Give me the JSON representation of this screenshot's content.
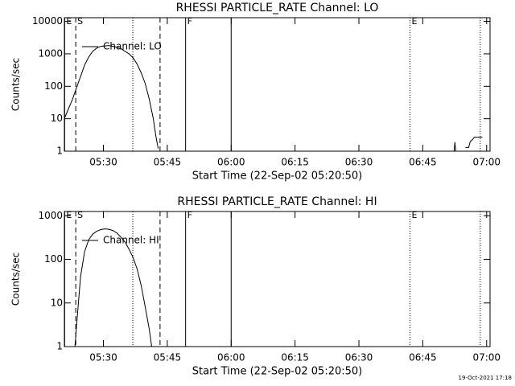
{
  "chart_data": [
    {
      "type": "line",
      "title": "RHESSI PARTICLE_RATE Channel: LO",
      "ylabel": "Counts/sec",
      "xlabel": "Start Time (22-Sep-02 05:20:50)",
      "x": [
        20.83,
        21.78,
        22.73,
        23.68,
        24.63,
        25.58,
        26.53,
        27.48,
        28.43,
        29.38,
        30.33,
        31.28,
        32.22,
        33.17,
        34.12,
        35.07,
        36.02,
        36.97,
        37.92,
        38.87,
        39.82,
        40.77,
        41.72,
        42.29,
        42.86,
        43.2,
        112.35,
        112.54,
        112.73,
        113.5,
        115.01,
        115.77,
        116.15,
        116.72,
        117.1,
        119.0
      ],
      "series": [
        {
          "name": "Channel: LO",
          "color": "#000000",
          "values": [
            10,
            20,
            40,
            90,
            200,
            450,
            800,
            1200,
            1500,
            1700,
            1750,
            1800,
            1700,
            1600,
            1450,
            1200,
            1000,
            750,
            480,
            260,
            120,
            40,
            10,
            3,
            1.2,
            null,
            1,
            1.9,
            1,
            null,
            1.3,
            1.3,
            2,
            2.3,
            2.7,
            2.7
          ]
        }
      ],
      "xlim": [
        20.83,
        120.8
      ],
      "xticks": [
        {
          "value": 30,
          "label": "05:30"
        },
        {
          "value": 45,
          "label": "05:45"
        },
        {
          "value": 60,
          "label": "06:00"
        },
        {
          "value": 75,
          "label": "06:15"
        },
        {
          "value": 90,
          "label": "06:30"
        },
        {
          "value": 105,
          "label": "06:45"
        },
        {
          "value": 120,
          "label": "07:00"
        }
      ],
      "ylim": [
        1,
        13000
      ],
      "yticks": [
        1,
        10,
        100,
        1000,
        10000
      ],
      "log_y": true,
      "markers": [
        {
          "x": 20.9,
          "style": "solid",
          "label": "E"
        },
        {
          "x": 23.5,
          "style": "dashed",
          "label": "S"
        },
        {
          "x": 36.9,
          "style": "dotted"
        },
        {
          "x": 43.3,
          "style": "dashed"
        },
        {
          "x": 49.3,
          "style": "solid",
          "label": "F"
        },
        {
          "x": 60,
          "style": "solid"
        },
        {
          "x": 102.0,
          "style": "dotted",
          "label": "E"
        },
        {
          "x": 118.5,
          "style": "dotted"
        }
      ]
    },
    {
      "type": "line",
      "title": "RHESSI PARTICLE_RATE Channel: HI",
      "ylabel": "Counts/sec",
      "xlabel": "Start Time (22-Sep-02 05:20:50)",
      "x": [
        23.3,
        23.87,
        24.63,
        25.58,
        26.53,
        27.48,
        28.43,
        29.38,
        30.33,
        31.28,
        32.22,
        33.17,
        34.12,
        35.07,
        36.02,
        36.97,
        37.92,
        38.87,
        39.82,
        40.77,
        41.34
      ],
      "series": [
        {
          "name": "Channel: HI",
          "color": "#000000",
          "values": [
            1,
            5,
            40,
            150,
            280,
            380,
            440,
            480,
            500,
            490,
            460,
            400,
            320,
            250,
            170,
            110,
            60,
            25,
            8,
            2.5,
            1
          ]
        }
      ],
      "xlim": [
        20.83,
        120.8
      ],
      "xticks": [
        {
          "value": 30,
          "label": "05:30"
        },
        {
          "value": 45,
          "label": "05:45"
        },
        {
          "value": 60,
          "label": "06:00"
        },
        {
          "value": 75,
          "label": "06:15"
        },
        {
          "value": 90,
          "label": "06:30"
        },
        {
          "value": 105,
          "label": "06:45"
        },
        {
          "value": 120,
          "label": "07:00"
        }
      ],
      "ylim": [
        1,
        1250
      ],
      "yticks": [
        1,
        10,
        100,
        1000
      ],
      "log_y": true,
      "markers": [
        {
          "x": 20.9,
          "style": "solid",
          "label": "E"
        },
        {
          "x": 23.5,
          "style": "dashed",
          "label": "S"
        },
        {
          "x": 36.9,
          "style": "dotted"
        },
        {
          "x": 43.3,
          "style": "dashed"
        },
        {
          "x": 49.3,
          "style": "solid",
          "label": "F"
        },
        {
          "x": 60,
          "style": "solid"
        },
        {
          "x": 102.0,
          "style": "dotted",
          "label": "E"
        },
        {
          "x": 118.5,
          "style": "dotted"
        }
      ]
    }
  ],
  "timestamp": "19-Oct-2021 17:18"
}
